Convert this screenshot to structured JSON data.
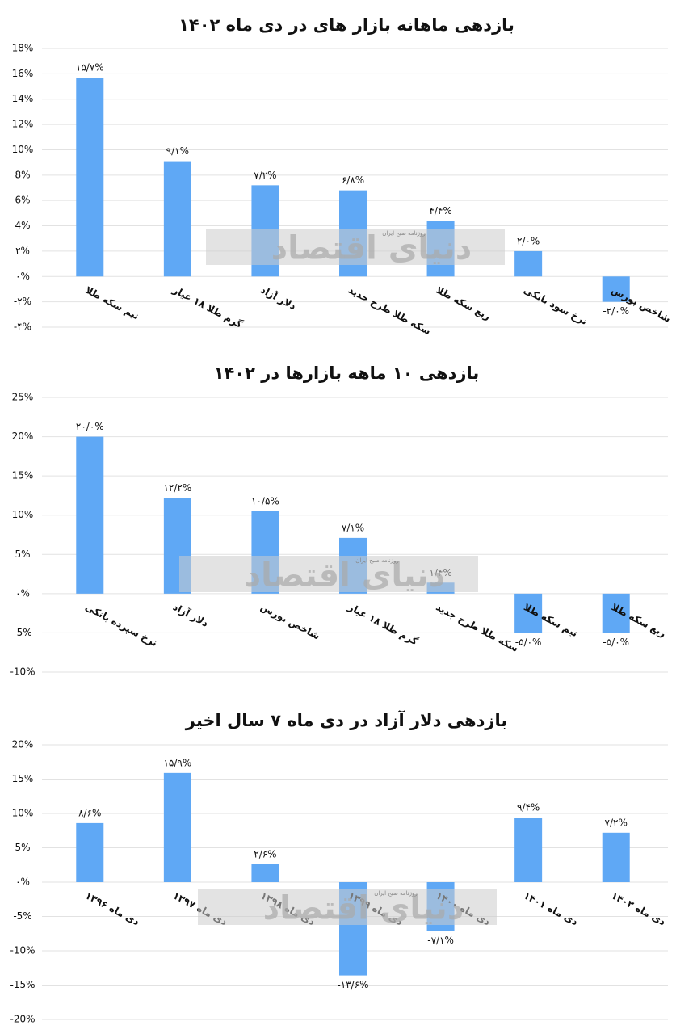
{
  "chart_data": [
    {
      "type": "bar",
      "title": "بازدهی ماهانه بازار های در دی ماه ۱۴۰۲",
      "color": "#5fa8f5",
      "grid": true,
      "categories": [
        "نیم سکه طلا",
        "گرم طلا ۱۸ عیار",
        "دلار آزاد",
        "سکه طلا طرح جدید",
        "ربع سکه طلا",
        "نرخ سود بانکی",
        "شاخص بورس"
      ],
      "values": [
        15.7,
        9.1,
        7.2,
        6.8,
        4.4,
        2.0,
        -2.0
      ],
      "value_labels": [
        "۱۵/۷%",
        "۹/۱%",
        "۷/۲%",
        "۶/۸%",
        "۴/۴%",
        "۲/۰%",
        "-۲/۰%"
      ],
      "ylim": [
        -4,
        18
      ],
      "yticks": [
        {
          "value": 18,
          "label": "18%"
        },
        {
          "value": 16,
          "label": "16%"
        },
        {
          "value": 14,
          "label": "14%"
        },
        {
          "value": 12,
          "label": "12%"
        },
        {
          "value": 10,
          "label": "10%"
        },
        {
          "value": 8,
          "label": "8%"
        },
        {
          "value": 6,
          "label": "6%"
        },
        {
          "value": 4,
          "label": "4%"
        },
        {
          "value": 2,
          "label": "۲%"
        },
        {
          "value": 0,
          "label": "۰%"
        },
        {
          "value": -2,
          "label": "-۲%"
        },
        {
          "value": -4,
          "label": "-۴%"
        }
      ]
    },
    {
      "type": "bar",
      "title": "بازدهی ۱۰ ماهه بازارها در ۱۴۰۲",
      "color": "#5fa8f5",
      "grid": true,
      "categories": [
        "نرخ سپرده بانکی",
        "دلار آزاد",
        "شاخص بورس",
        "گرم طلا ۱۸ عیار",
        "سکه طلا طرح جدید",
        "نیم سکه طلا",
        "ربع سکه طلا"
      ],
      "values": [
        20.0,
        12.2,
        10.5,
        7.1,
        1.4,
        -5.0,
        -5.0
      ],
      "value_labels": [
        "۲۰/۰%",
        "۱۲/۲%",
        "۱۰/۵%",
        "۷/۱%",
        "۱/۴%",
        "-۵/۰%",
        "-۵/۰%"
      ],
      "ylim": [
        -10,
        25
      ],
      "yticks": [
        {
          "value": 25,
          "label": "25%"
        },
        {
          "value": 20,
          "label": "20%"
        },
        {
          "value": 15,
          "label": "15%"
        },
        {
          "value": 10,
          "label": "10%"
        },
        {
          "value": 5,
          "label": "5%"
        },
        {
          "value": 0,
          "label": "۰%"
        },
        {
          "value": -5,
          "label": "-5%"
        },
        {
          "value": -10,
          "label": "-10%"
        }
      ]
    },
    {
      "type": "bar",
      "title": "بازدهی دلار آزاد در دی ماه ۷ سال اخیر",
      "color": "#5fa8f5",
      "grid": true,
      "categories": [
        "دی ماه ۱۳۹۶",
        "دی ماه ۱۳۹۷",
        "دی ماه ۱۳۹۸",
        "دی ماه ۱۳۹۹",
        "دی ماه ۱۴۰۰",
        "دی ماه ۱۴۰۱",
        "دی ماه ۱۴۰۲"
      ],
      "values": [
        8.6,
        15.9,
        2.6,
        -13.6,
        -7.1,
        9.4,
        7.2
      ],
      "value_labels": [
        "۸/۶%",
        "۱۵/۹%",
        "۲/۶%",
        "-۱۳/۶%",
        "-۷/۱%",
        "۹/۴%",
        "۷/۲%"
      ],
      "ylim": [
        -20,
        20
      ],
      "yticks": [
        {
          "value": 20,
          "label": "20%"
        },
        {
          "value": 15,
          "label": "15%"
        },
        {
          "value": 10,
          "label": "10%"
        },
        {
          "value": 5,
          "label": "5%"
        },
        {
          "value": 0,
          "label": "۰%"
        },
        {
          "value": -5,
          "label": "-5%"
        },
        {
          "value": -10,
          "label": "-10%"
        },
        {
          "value": -15,
          "label": "-15%"
        },
        {
          "value": -20,
          "label": "-20%"
        }
      ]
    }
  ],
  "watermark": {
    "name": "دنیای اقتصاد",
    "tagline": "روزنامه صبح ایران"
  }
}
